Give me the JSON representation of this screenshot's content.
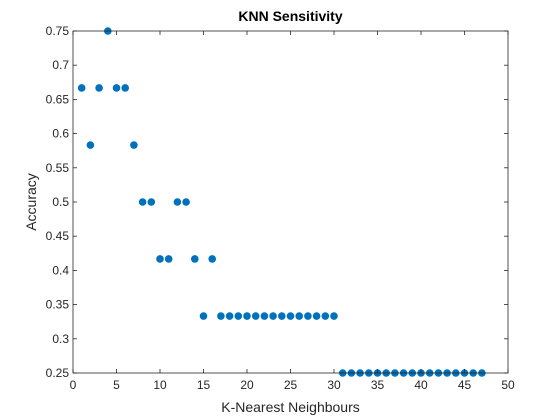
{
  "chart_data": {
    "type": "scatter",
    "title": "KNN Sensitivity",
    "xlabel": "K-Nearest Neighbours",
    "ylabel": "Accuracy",
    "xlim": [
      0,
      50
    ],
    "ylim": [
      0.25,
      0.75
    ],
    "xticks": [
      0,
      5,
      10,
      15,
      20,
      25,
      30,
      35,
      40,
      45,
      50
    ],
    "yticks": [
      0.25,
      0.3,
      0.35,
      0.4,
      0.45,
      0.5,
      0.55,
      0.6,
      0.65,
      0.7,
      0.75
    ],
    "ytick_labels": [
      "0.25",
      "0.3",
      "0.35",
      "0.4",
      "0.45",
      "0.5",
      "0.55",
      "0.6",
      "0.65",
      "0.7",
      "0.75"
    ],
    "grid": false,
    "colors": {
      "marker": "#0072BD",
      "axis": "#262626"
    },
    "series": [
      {
        "x": [
          1,
          2,
          3,
          4,
          5,
          6,
          7,
          8,
          9,
          10,
          11,
          12,
          13,
          14,
          15,
          16,
          17,
          18,
          19,
          20,
          21,
          22,
          23,
          24,
          25,
          26,
          27,
          28,
          29,
          30,
          31,
          32,
          33,
          34,
          35,
          36,
          37,
          38,
          39,
          40,
          41,
          42,
          43,
          44,
          45,
          46,
          47
        ],
        "y": [
          0.6667,
          0.5833,
          0.6667,
          0.75,
          0.6667,
          0.6667,
          0.5833,
          0.5,
          0.5,
          0.4167,
          0.4167,
          0.5,
          0.5,
          0.4167,
          0.3333,
          0.4167,
          0.3333,
          0.3333,
          0.3333,
          0.3333,
          0.3333,
          0.3333,
          0.3333,
          0.3333,
          0.3333,
          0.3333,
          0.3333,
          0.3333,
          0.3333,
          0.3333,
          0.25,
          0.25,
          0.25,
          0.25,
          0.25,
          0.25,
          0.25,
          0.25,
          0.25,
          0.25,
          0.25,
          0.25,
          0.25,
          0.25,
          0.25,
          0.25,
          0.25
        ]
      }
    ]
  }
}
